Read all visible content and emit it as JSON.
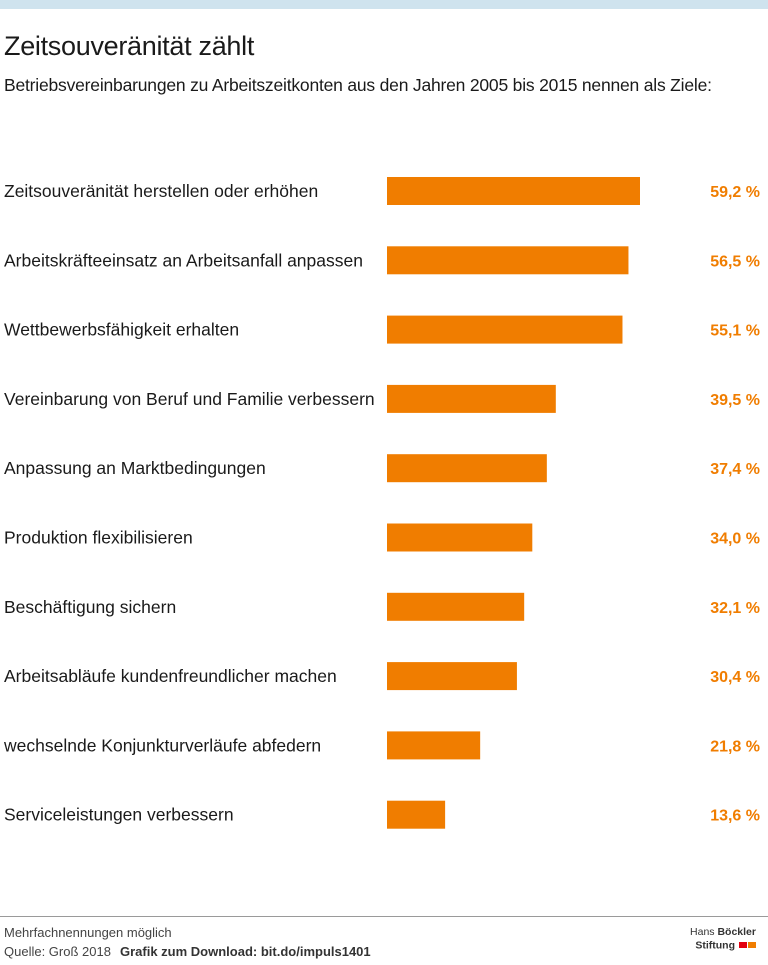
{
  "header": {
    "title": "Zeitsouveränität zählt",
    "subtitle": "Betriebsvereinbarungen zu Arbeitszeitkonten aus den Jahren 2005 bis 2015 nennen als Ziele:"
  },
  "chart_data": {
    "type": "bar",
    "orientation": "horizontal",
    "categories": [
      "Zeitsouveränität herstellen oder erhöhen",
      "Arbeitskräfteeinsatz an Arbeitsanfall anpassen",
      "Wettbewerbsfähigkeit erhalten",
      "Vereinbarung von Beruf und Familie verbessern",
      "Anpassung an Marktbedingungen",
      "Produktion flexibilisieren",
      "Beschäftigung sichern",
      "Arbeitsabläufe kundenfreundlicher machen",
      "wechselnde Konjunkturverläufe abfedern",
      "Serviceleistungen verbessern"
    ],
    "values": [
      59.2,
      56.5,
      55.1,
      39.5,
      37.4,
      34.0,
      32.1,
      30.4,
      21.8,
      13.6
    ],
    "value_labels": [
      "59,2 %",
      "56,5 %",
      "55,1 %",
      "39,5 %",
      "37,4 %",
      "34,0 %",
      "32,1 %",
      "30,4 %",
      "21,8 %",
      "13,6 %"
    ],
    "xlim": [
      0,
      59.2
    ],
    "bar_color": "#f07d00",
    "value_label_color": "#f07d00",
    "grid": false,
    "legend": "none"
  },
  "footer": {
    "note": "Mehrfachnennungen möglich",
    "source": "Quelle: Groß 2018",
    "download": "Grafik zum Download: bit.do/impuls1401",
    "logo_line1_a": "Hans",
    "logo_line1_b": "Böckler",
    "logo_line2": "Stiftung",
    "logo_colors": [
      "#e3000f",
      "#f07d00"
    ]
  },
  "colors": {
    "top_bar": "#cfe3ee",
    "accent": "#f07d00"
  }
}
